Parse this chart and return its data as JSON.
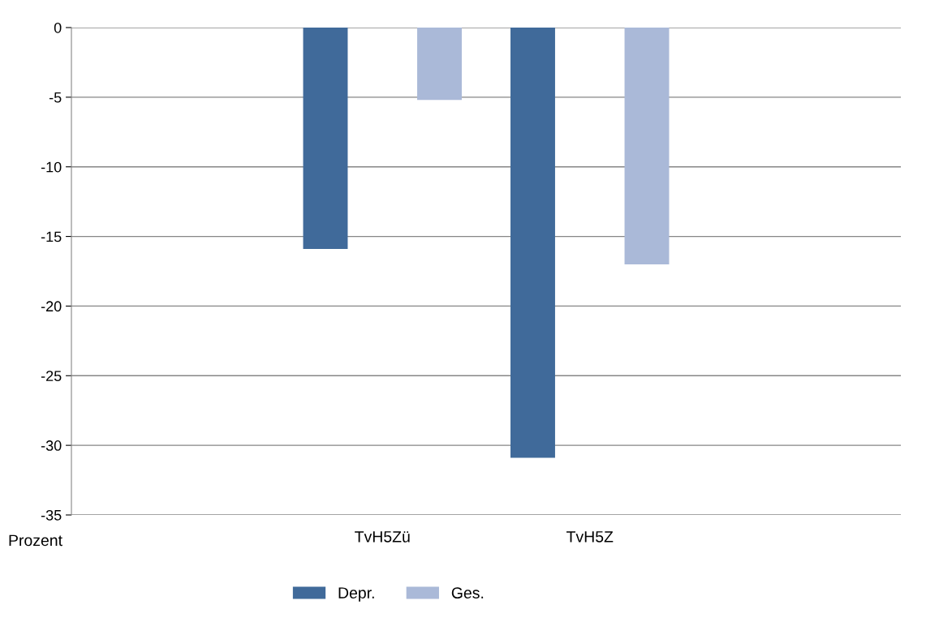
{
  "chart_data": {
    "type": "bar",
    "ylabel": "Prozent",
    "categories": [
      null,
      "TvH5Zü",
      "TvH5Z",
      null
    ],
    "series": [
      {
        "name": "Depr.",
        "color": "#406a9a",
        "values": [
          null,
          -15.9,
          -30.9,
          null
        ]
      },
      {
        "name": "Ges.",
        "color": "#aab9d8",
        "values": [
          null,
          -5.2,
          -17.0,
          null
        ]
      }
    ],
    "ylim": [
      -35,
      0
    ],
    "yticks": [
      -35,
      -30,
      -25,
      -20,
      -15,
      -10,
      -5,
      0
    ],
    "grid": "y",
    "legend": "bottom"
  }
}
